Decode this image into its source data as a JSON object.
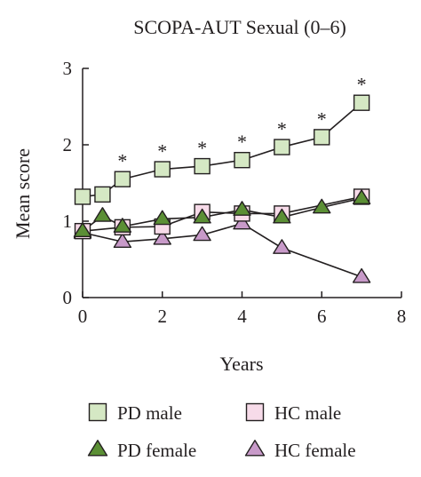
{
  "chart_data": {
    "type": "line",
    "title": "SCOPA-AUT Sexual (0–6)",
    "xlabel": "Years",
    "ylabel": "Mean score",
    "xlim": [
      0,
      8
    ],
    "ylim": [
      0,
      3
    ],
    "xticks": [
      0,
      2,
      4,
      6,
      8
    ],
    "yticks": [
      0,
      1,
      2,
      3
    ],
    "xtick_labels": [
      "0",
      "2",
      "4",
      "6",
      "8"
    ],
    "ytick_labels": [
      "0",
      "1",
      "2",
      "3"
    ],
    "grid": false,
    "legend_placement": "bottom",
    "series": [
      {
        "name": "PD male",
        "marker": "square",
        "fill": "#d5e8c4",
        "x": [
          0,
          0.5,
          1,
          2,
          3,
          4,
          5,
          6,
          7
        ],
        "y": [
          1.32,
          1.35,
          1.55,
          1.68,
          1.72,
          1.8,
          1.97,
          2.1,
          2.55
        ]
      },
      {
        "name": "HC male",
        "marker": "square",
        "fill": "#f7dbe9",
        "x": [
          0,
          1,
          2,
          3,
          4,
          5,
          7
        ],
        "y": [
          0.87,
          0.92,
          0.93,
          1.12,
          1.1,
          1.1,
          1.32
        ]
      },
      {
        "name": "PD female",
        "marker": "triangle",
        "fill": "#5b8f35",
        "x": [
          0,
          0.5,
          1,
          2,
          3,
          4,
          5,
          6,
          7
        ],
        "y": [
          0.87,
          1.07,
          0.93,
          1.03,
          1.05,
          1.15,
          1.05,
          1.18,
          1.3
        ]
      },
      {
        "name": "HC female",
        "marker": "triangle",
        "fill": "#c89ac9",
        "x": [
          0,
          1,
          2,
          3,
          4,
          5,
          7
        ],
        "y": [
          0.85,
          0.73,
          0.77,
          0.82,
          0.97,
          0.65,
          0.27
        ]
      }
    ],
    "significance_markers": {
      "symbol": "*",
      "x": [
        1,
        2,
        3,
        4,
        5,
        6,
        7
      ]
    },
    "line_color": "#231f20"
  }
}
